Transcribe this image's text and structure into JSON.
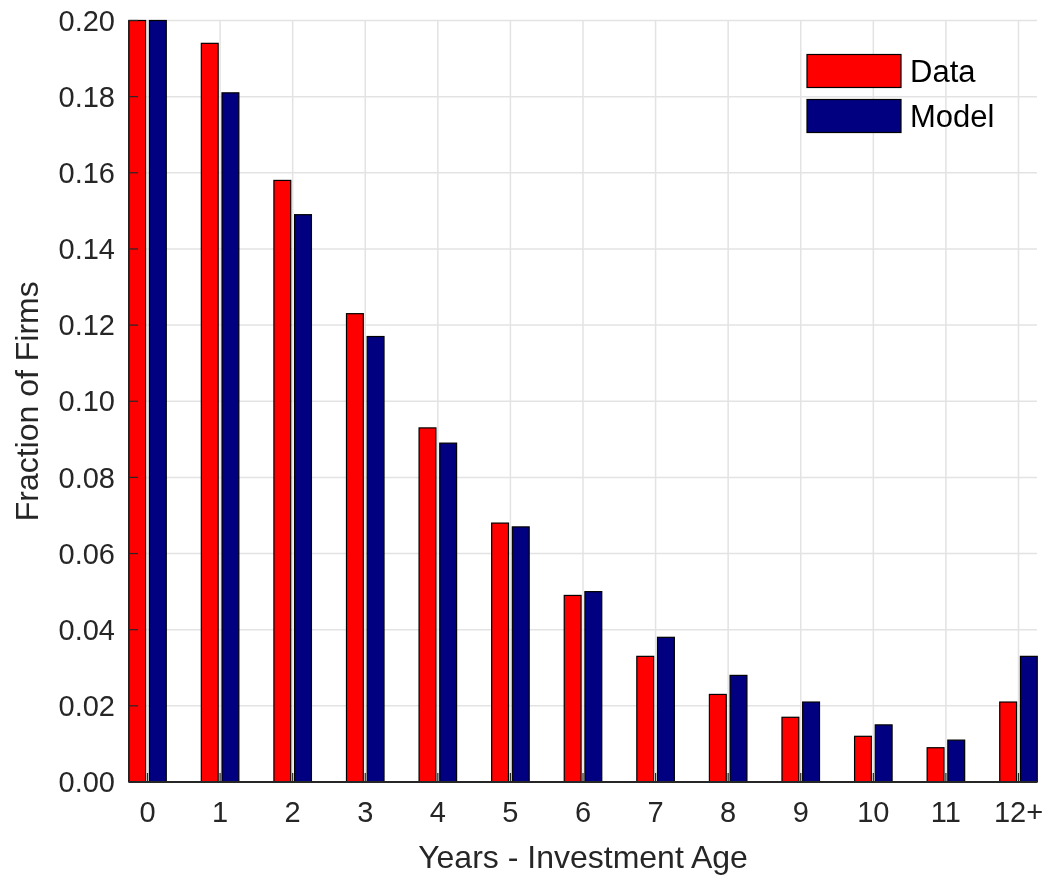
{
  "chart_data": {
    "type": "bar",
    "xlabel": "Years - Investment Age",
    "ylabel": "Fraction of Firms",
    "categories": [
      "0",
      "1",
      "2",
      "3",
      "4",
      "5",
      "6",
      "7",
      "8",
      "9",
      "10",
      "11",
      "12+"
    ],
    "series": [
      {
        "name": "Data",
        "color": "#ff0000",
        "values": [
          0.2,
          0.194,
          0.158,
          0.123,
          0.093,
          0.068,
          0.049,
          0.033,
          0.023,
          0.017,
          0.012,
          0.009,
          0.021
        ]
      },
      {
        "name": "Model",
        "color": "#000080",
        "values": [
          0.2,
          0.181,
          0.149,
          0.117,
          0.089,
          0.067,
          0.05,
          0.038,
          0.028,
          0.021,
          0.015,
          0.011,
          0.033
        ]
      }
    ],
    "ylim": [
      0,
      0.2
    ],
    "yticks": [
      {
        "value": 0,
        "label": "0.00"
      },
      {
        "value": 0.02,
        "label": "0.02"
      },
      {
        "value": 0.04,
        "label": "0.04"
      },
      {
        "value": 0.06,
        "label": "0.06"
      },
      {
        "value": 0.08,
        "label": "0.08"
      },
      {
        "value": 0.1,
        "label": "0.10"
      },
      {
        "value": 0.12,
        "label": "0.12"
      },
      {
        "value": 0.14,
        "label": "0.14"
      },
      {
        "value": 0.16,
        "label": "0.16"
      },
      {
        "value": 0.18,
        "label": "0.18"
      },
      {
        "value": 0.2,
        "label": "0.20"
      }
    ],
    "grid": true,
    "legend": "top right"
  }
}
